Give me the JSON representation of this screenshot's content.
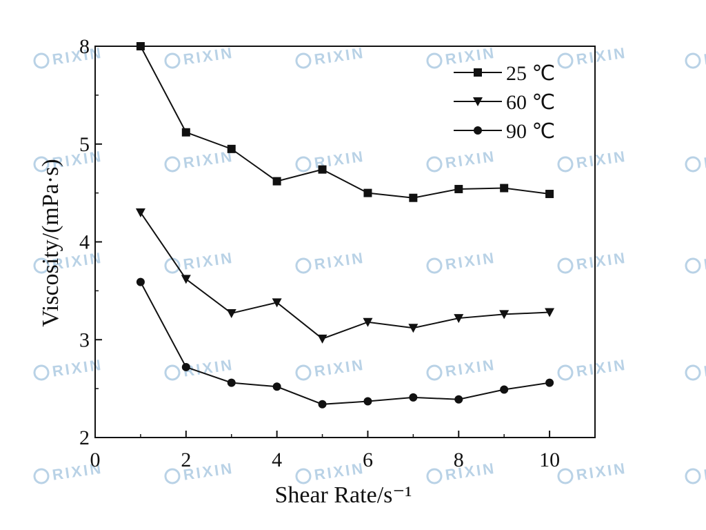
{
  "watermark": {
    "text": "RIXIN",
    "color": "#b9d2e6"
  },
  "chart_data": {
    "type": "line",
    "title": "",
    "xlabel": "Shear Rate/s⁻¹",
    "ylabel": "Viscosity/(mPa·s)",
    "xlim": [
      0,
      11
    ],
    "ylim": [
      2,
      8
    ],
    "x_ticks": [
      0,
      2,
      4,
      6,
      8,
      10
    ],
    "y_ticks": [
      2,
      3,
      4,
      5,
      8
    ],
    "y_tick_positions": [
      2,
      3,
      4,
      5,
      6
    ],
    "y_axis_note": "axis shows a break: tick labelled 8 sits where 6 would be",
    "grid": false,
    "legend_position": "top-right",
    "x": [
      1,
      2,
      3,
      4,
      5,
      6,
      7,
      8,
      9,
      10
    ],
    "series": [
      {
        "name": "25 ℃",
        "marker": "square",
        "values": [
          7.8,
          5.12,
          4.95,
          4.62,
          4.74,
          4.5,
          4.45,
          4.54,
          4.55,
          4.49
        ]
      },
      {
        "name": "60 ℃",
        "marker": "triangle-down",
        "values": [
          4.3,
          3.62,
          3.27,
          3.38,
          3.01,
          3.18,
          3.12,
          3.22,
          3.26,
          3.28
        ]
      },
      {
        "name": "90 ℃",
        "marker": "circle",
        "values": [
          3.59,
          2.72,
          2.56,
          2.52,
          2.34,
          2.37,
          2.41,
          2.39,
          2.49,
          2.56
        ]
      }
    ]
  }
}
